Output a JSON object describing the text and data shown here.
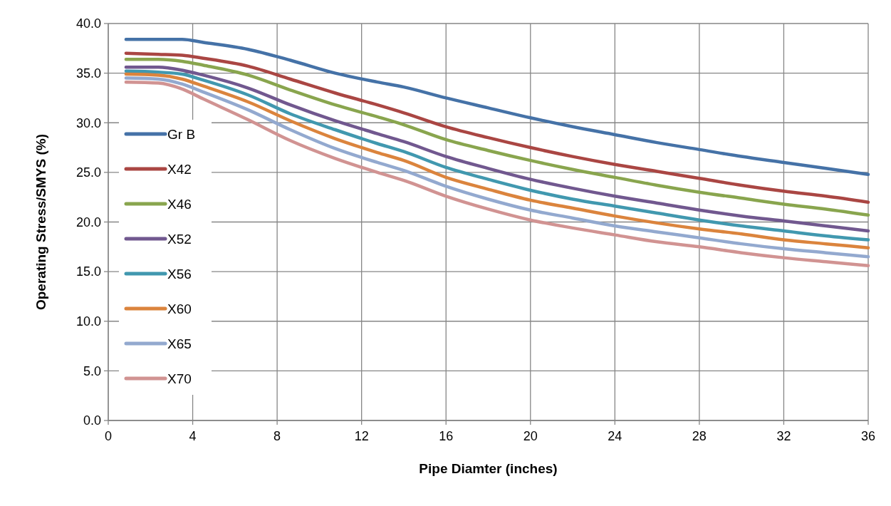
{
  "chart_data": {
    "type": "line",
    "xlabel": "Pipe Diamter (inches)",
    "ylabel": "Operating Stress/SMYS (%)",
    "x": [
      0.84,
      2.375,
      3.5,
      4.5,
      6.625,
      8.625,
      10.75,
      12.75,
      14,
      16,
      18,
      20,
      22,
      24,
      26,
      28,
      30,
      32,
      34,
      36
    ],
    "xlim": [
      0,
      36
    ],
    "xticks": [
      0,
      4,
      8,
      12,
      16,
      20,
      24,
      28,
      32,
      36
    ],
    "ylim": [
      0,
      40
    ],
    "yticks": [
      {
        "value": 0,
        "label": "0.0"
      },
      {
        "value": 5,
        "label": "5.0"
      },
      {
        "value": 10,
        "label": "10.0"
      },
      {
        "value": 15,
        "label": "15.0"
      },
      {
        "value": 20,
        "label": "20.0"
      },
      {
        "value": 25,
        "label": "25.0"
      },
      {
        "value": 30,
        "label": "30.0"
      },
      {
        "value": 35,
        "label": "35.0"
      },
      {
        "value": 40,
        "label": "40.0"
      }
    ],
    "grid": true,
    "legend": "left",
    "marker": "none",
    "line_style": "solid",
    "series": [
      {
        "name": "Gr B",
        "color": "#4572a7",
        "values": [
          38.4,
          38.4,
          38.4,
          38.1,
          37.4,
          36.3,
          35.0,
          34.1,
          33.6,
          32.5,
          31.5,
          30.5,
          29.6,
          28.8,
          28.0,
          27.3,
          26.6,
          26.0,
          25.4,
          24.8
        ]
      },
      {
        "name": "X42",
        "color": "#aa4643",
        "values": [
          37.0,
          36.9,
          36.8,
          36.5,
          35.7,
          34.4,
          33.0,
          31.8,
          31.0,
          29.6,
          28.5,
          27.5,
          26.6,
          25.8,
          25.1,
          24.4,
          23.7,
          23.1,
          22.6,
          22.0
        ]
      },
      {
        "name": "X46",
        "color": "#89a54e",
        "values": [
          36.4,
          36.4,
          36.2,
          35.8,
          34.8,
          33.3,
          31.8,
          30.6,
          29.8,
          28.3,
          27.2,
          26.2,
          25.3,
          24.5,
          23.7,
          23.0,
          22.4,
          21.8,
          21.3,
          20.7
        ]
      },
      {
        "name": "X52",
        "color": "#71588f",
        "values": [
          35.6,
          35.6,
          35.3,
          34.8,
          33.5,
          31.8,
          30.2,
          28.9,
          28.1,
          26.6,
          25.4,
          24.3,
          23.4,
          22.6,
          21.9,
          21.2,
          20.6,
          20.1,
          19.6,
          19.1
        ]
      },
      {
        "name": "X56",
        "color": "#4198af",
        "values": [
          35.2,
          35.1,
          34.9,
          34.3,
          32.8,
          30.9,
          29.3,
          27.9,
          27.1,
          25.5,
          24.3,
          23.2,
          22.3,
          21.6,
          20.9,
          20.2,
          19.6,
          19.1,
          18.6,
          18.2
        ]
      },
      {
        "name": "X60",
        "color": "#db843d",
        "values": [
          34.9,
          34.8,
          34.4,
          33.7,
          32.1,
          30.2,
          28.4,
          27.0,
          26.2,
          24.5,
          23.3,
          22.2,
          21.4,
          20.6,
          19.9,
          19.3,
          18.8,
          18.2,
          17.8,
          17.4
        ]
      },
      {
        "name": "X65",
        "color": "#93a9cf",
        "values": [
          34.5,
          34.4,
          33.9,
          33.1,
          31.3,
          29.3,
          27.4,
          26.0,
          25.2,
          23.6,
          22.3,
          21.2,
          20.4,
          19.6,
          19.0,
          18.4,
          17.8,
          17.3,
          16.9,
          16.5
        ]
      },
      {
        "name": "X70",
        "color": "#d19392",
        "values": [
          34.1,
          34.0,
          33.4,
          32.4,
          30.3,
          28.2,
          26.4,
          25.0,
          24.2,
          22.6,
          21.3,
          20.2,
          19.4,
          18.7,
          18.0,
          17.5,
          16.9,
          16.4,
          16.0,
          15.6
        ]
      }
    ]
  }
}
